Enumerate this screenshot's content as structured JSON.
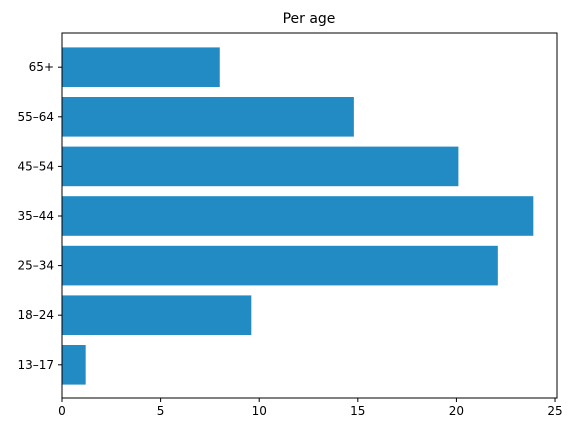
{
  "chart_data": {
    "type": "bar",
    "orientation": "horizontal",
    "title": "Per age",
    "xlabel": "",
    "ylabel": "",
    "categories": [
      "13–17",
      "18–24",
      "25–34",
      "35–44",
      "45–54",
      "55–64",
      "65+"
    ],
    "values": [
      1.2,
      9.6,
      22.1,
      23.9,
      20.1,
      14.8,
      8.0
    ],
    "xlim": [
      0,
      25.1
    ],
    "xticks": [
      0,
      5,
      10,
      15,
      20,
      25
    ],
    "grid": false,
    "bar_color": "#238bc3"
  }
}
